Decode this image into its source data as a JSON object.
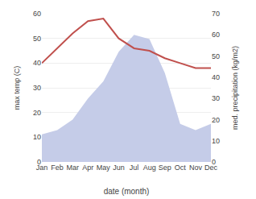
{
  "chart_data": {
    "type": "line",
    "categories": [
      "Jan",
      "Feb",
      "Mar",
      "Apr",
      "May",
      "Jun",
      "Jul",
      "Aug",
      "Sep",
      "Oct",
      "Nov",
      "Dec"
    ],
    "series": [
      {
        "type": "area",
        "color": "#c5cce8",
        "axis": "y2",
        "values": [
          13,
          15,
          20,
          30,
          38,
          52,
          60,
          58,
          42,
          18,
          15,
          18
        ]
      },
      {
        "type": "line",
        "color": "#c0504d",
        "values": [
          40,
          46,
          52,
          57,
          58,
          50,
          46,
          45,
          42,
          40,
          38,
          38
        ]
      }
    ],
    "x_label": "date (month)",
    "y_label": "max temp (C)",
    "y2_label": "med. precipitation (kg/m2)",
    "ylim": [
      0,
      60
    ],
    "yticks": [
      0,
      10,
      20,
      30,
      40,
      50,
      60
    ],
    "y2lim": [
      0,
      70
    ],
    "y2ticks": [
      0,
      10,
      20,
      30,
      40,
      50,
      60,
      70
    ],
    "grid": true
  }
}
